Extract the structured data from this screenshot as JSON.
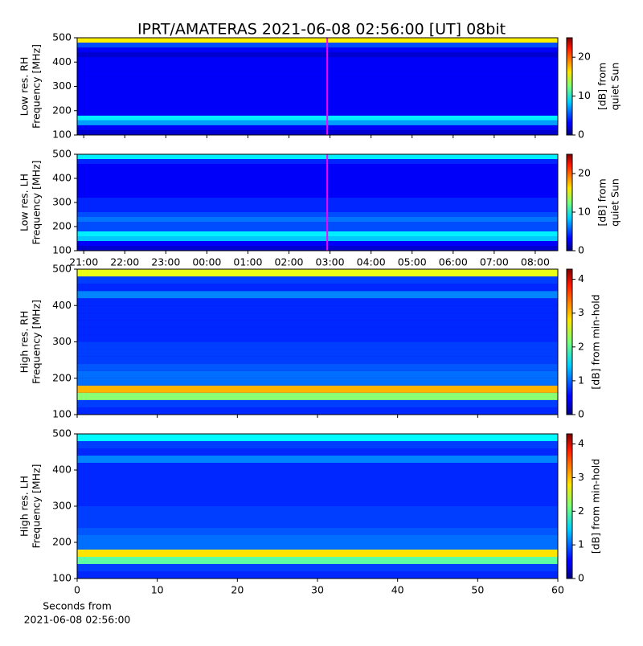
{
  "title": "IPRT/AMATERAS 2021-06-08 02:56:00 [UT]   08bit",
  "chart_data": [
    {
      "type": "heatmap",
      "ylabel": [
        "Low res. RH",
        "Frequency [MHz]"
      ],
      "xlim": [
        -0.16,
        11.55
      ],
      "xticks": [
        0,
        1,
        2,
        3,
        4,
        5,
        6,
        7,
        8,
        9,
        10,
        11
      ],
      "xticklabels": false,
      "ylim": [
        100,
        500
      ],
      "yticks": [
        100,
        200,
        300,
        400,
        500
      ],
      "y": [
        110,
        130,
        150,
        170,
        190,
        210,
        230,
        250,
        270,
        290,
        310,
        330,
        350,
        370,
        390,
        410,
        430,
        450,
        470,
        490
      ],
      "values": [
        2,
        3,
        7,
        9,
        3,
        3,
        3,
        3,
        3,
        3,
        3,
        3,
        3,
        3,
        3,
        3,
        2,
        3,
        5,
        16
      ],
      "clim": [
        0,
        25
      ],
      "cticks": [
        0,
        10,
        20
      ],
      "clabel": [
        "[dB] from",
        "quiet Sun"
      ],
      "marker": {
        "value": 5.933,
        "color": "#ff00ff"
      }
    },
    {
      "type": "heatmap",
      "ylabel": [
        "Low res. LH",
        "Frequency [MHz]"
      ],
      "xlim": [
        -0.16,
        11.55
      ],
      "xticks": [
        {
          "value": 0,
          "label": "21:00"
        },
        {
          "value": 1,
          "label": "22:00"
        },
        {
          "value": 2,
          "label": "23:00"
        },
        {
          "value": 3,
          "label": "00:00"
        },
        {
          "value": 4,
          "label": "01:00"
        },
        {
          "value": 5,
          "label": "02:00"
        },
        {
          "value": 6,
          "label": "03:00"
        },
        {
          "value": 7,
          "label": "04:00"
        },
        {
          "value": 8,
          "label": "05:00"
        },
        {
          "value": 9,
          "label": "06:00"
        },
        {
          "value": 10,
          "label": "07:00"
        },
        {
          "value": 11,
          "label": "08:00"
        }
      ],
      "ylim": [
        100,
        500
      ],
      "yticks": [
        100,
        200,
        300,
        400,
        500
      ],
      "y": [
        110,
        130,
        150,
        170,
        190,
        210,
        230,
        250,
        270,
        290,
        310,
        330,
        350,
        370,
        390,
        410,
        430,
        450,
        470,
        490
      ],
      "values": [
        2,
        3,
        8,
        9,
        5,
        5,
        6,
        5,
        4,
        4,
        4,
        3,
        3,
        3,
        3,
        3,
        3,
        3,
        4,
        9
      ],
      "clim": [
        0,
        25
      ],
      "cticks": [
        0,
        10,
        20
      ],
      "clabel": [
        "[dB] from",
        "quiet Sun"
      ],
      "marker": {
        "value": 5.933,
        "color": "#ff00ff"
      }
    },
    {
      "type": "heatmap",
      "ylabel": [
        "High res. RH",
        "Frequency [MHz]"
      ],
      "xlim": [
        0,
        60
      ],
      "xticks": [
        0,
        10,
        20,
        30,
        40,
        50,
        60
      ],
      "xticklabels": false,
      "ylim": [
        100,
        500
      ],
      "yticks": [
        100,
        200,
        300,
        400,
        500
      ],
      "y": [
        110,
        130,
        150,
        170,
        190,
        210,
        230,
        250,
        270,
        290,
        310,
        330,
        350,
        370,
        390,
        410,
        430,
        450,
        470,
        490
      ],
      "values": [
        0.7,
        0.8,
        2.2,
        3.0,
        1.0,
        1.0,
        0.9,
        0.8,
        0.8,
        0.8,
        0.7,
        0.7,
        0.7,
        0.7,
        0.7,
        0.7,
        1.1,
        0.7,
        0.8,
        2.6
      ],
      "clim": [
        0,
        4.3
      ],
      "cticks": [
        0,
        1,
        2,
        3,
        4
      ],
      "clabel": [
        "[dB] from min-hold"
      ]
    },
    {
      "type": "heatmap",
      "ylabel": [
        "High res. LH",
        "Frequency [MHz]"
      ],
      "xlim": [
        0,
        60
      ],
      "xticks": [
        0,
        10,
        20,
        30,
        40,
        50,
        60
      ],
      "xlabel": [
        "Seconds from",
        "2021-06-08 02:56:00"
      ],
      "ylim": [
        100,
        500
      ],
      "yticks": [
        100,
        200,
        300,
        400,
        500
      ],
      "y": [
        110,
        130,
        150,
        170,
        190,
        210,
        230,
        250,
        270,
        290,
        310,
        330,
        350,
        370,
        390,
        410,
        430,
        450,
        470,
        490
      ],
      "values": [
        0.7,
        0.8,
        2.0,
        2.8,
        1.0,
        1.0,
        0.9,
        0.8,
        0.8,
        0.8,
        0.7,
        0.7,
        0.7,
        0.7,
        0.7,
        0.7,
        1.1,
        0.7,
        0.8,
        1.6
      ],
      "clim": [
        0,
        4.3
      ],
      "cticks": [
        0,
        1,
        2,
        3,
        4
      ],
      "clabel": [
        "[dB] from min-hold"
      ]
    }
  ]
}
